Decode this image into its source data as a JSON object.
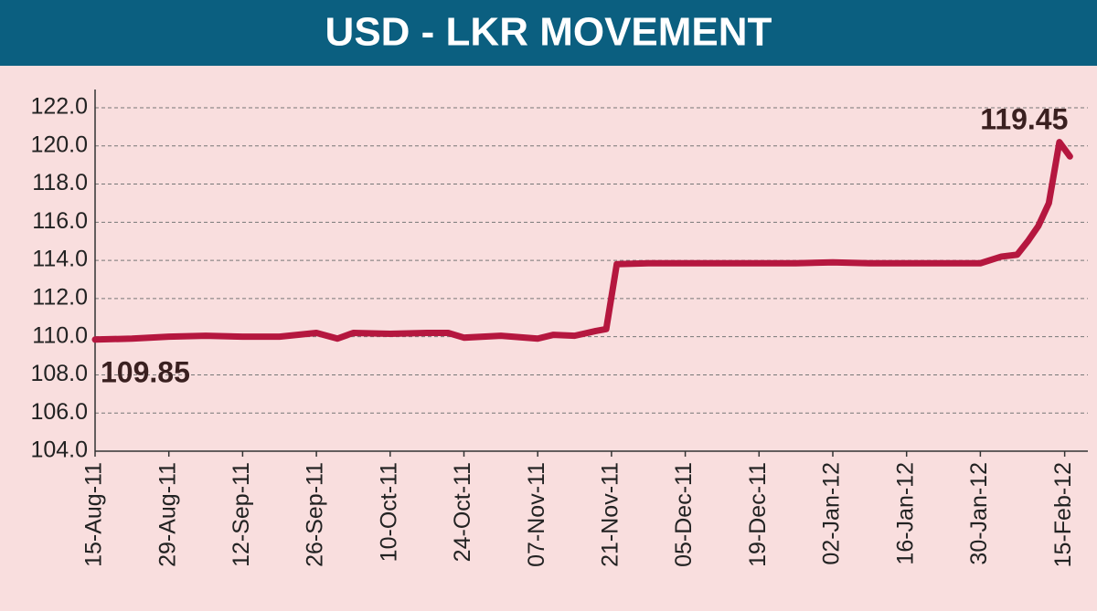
{
  "chart_data": {
    "type": "line",
    "title": "USD - LKR MOVEMENT",
    "x": [
      "15-Aug-11",
      "22-Aug-11",
      "29-Aug-11",
      "05-Sep-11",
      "12-Sep-11",
      "19-Sep-11",
      "26-Sep-11",
      "30-Sep-11",
      "03-Oct-11",
      "10-Oct-11",
      "17-Oct-11",
      "21-Oct-11",
      "24-Oct-11",
      "31-Oct-11",
      "07-Nov-11",
      "10-Nov-11",
      "14-Nov-11",
      "18-Nov-11",
      "20-Nov-11",
      "22-Nov-11",
      "28-Nov-11",
      "05-Dec-11",
      "12-Dec-11",
      "19-Dec-11",
      "26-Dec-11",
      "02-Jan-12",
      "09-Jan-12",
      "16-Jan-12",
      "23-Jan-12",
      "30-Jan-12",
      "03-Feb-12",
      "06-Feb-12",
      "08-Feb-12",
      "10-Feb-12",
      "12-Feb-12",
      "14-Feb-12",
      "16-Feb-12"
    ],
    "series": [
      {
        "name": "USD - LKR",
        "color": "#b5173f",
        "values": [
          109.85,
          109.9,
          110.0,
          110.05,
          110.0,
          110.0,
          110.2,
          109.9,
          110.2,
          110.15,
          110.2,
          110.2,
          109.95,
          110.05,
          109.9,
          110.1,
          110.05,
          110.3,
          110.4,
          113.8,
          113.85,
          113.85,
          113.85,
          113.85,
          113.85,
          113.9,
          113.85,
          113.85,
          113.85,
          113.85,
          114.2,
          114.3,
          115.0,
          115.8,
          117.0,
          120.2,
          119.45
        ],
        "value_labels": [
          "109.85",
          null,
          null,
          null,
          null,
          null,
          null,
          null,
          null,
          null,
          null,
          null,
          null,
          null,
          null,
          null,
          null,
          null,
          null,
          null,
          null,
          null,
          null,
          null,
          null,
          null,
          null,
          null,
          null,
          null,
          null,
          null,
          null,
          null,
          null,
          null,
          "119.45"
        ]
      }
    ],
    "xticks": [
      "15-Aug-11",
      "29-Aug-11",
      "12-Sep-11",
      "26-Sep-11",
      "10-Oct-11",
      "24-Oct-11",
      "07-Nov-11",
      "21-Nov-11",
      "05-Dec-11",
      "19-Dec-11",
      "02-Jan-12",
      "16-Jan-12",
      "30-Jan-12",
      "15-Feb-12"
    ],
    "ylim": [
      104,
      122
    ],
    "yticks": [
      {
        "value": 104,
        "label": "104.0"
      },
      {
        "value": 106,
        "label": "106.0"
      },
      {
        "value": 108,
        "label": "108.0"
      },
      {
        "value": 110,
        "label": "110.0"
      },
      {
        "value": 112,
        "label": "112.0"
      },
      {
        "value": 114,
        "label": "114.0"
      },
      {
        "value": 116,
        "label": "116.0"
      },
      {
        "value": 118,
        "label": "118.0"
      },
      {
        "value": 120,
        "label": "120.0"
      },
      {
        "value": 122,
        "label": "122.0"
      }
    ],
    "grid": true
  }
}
